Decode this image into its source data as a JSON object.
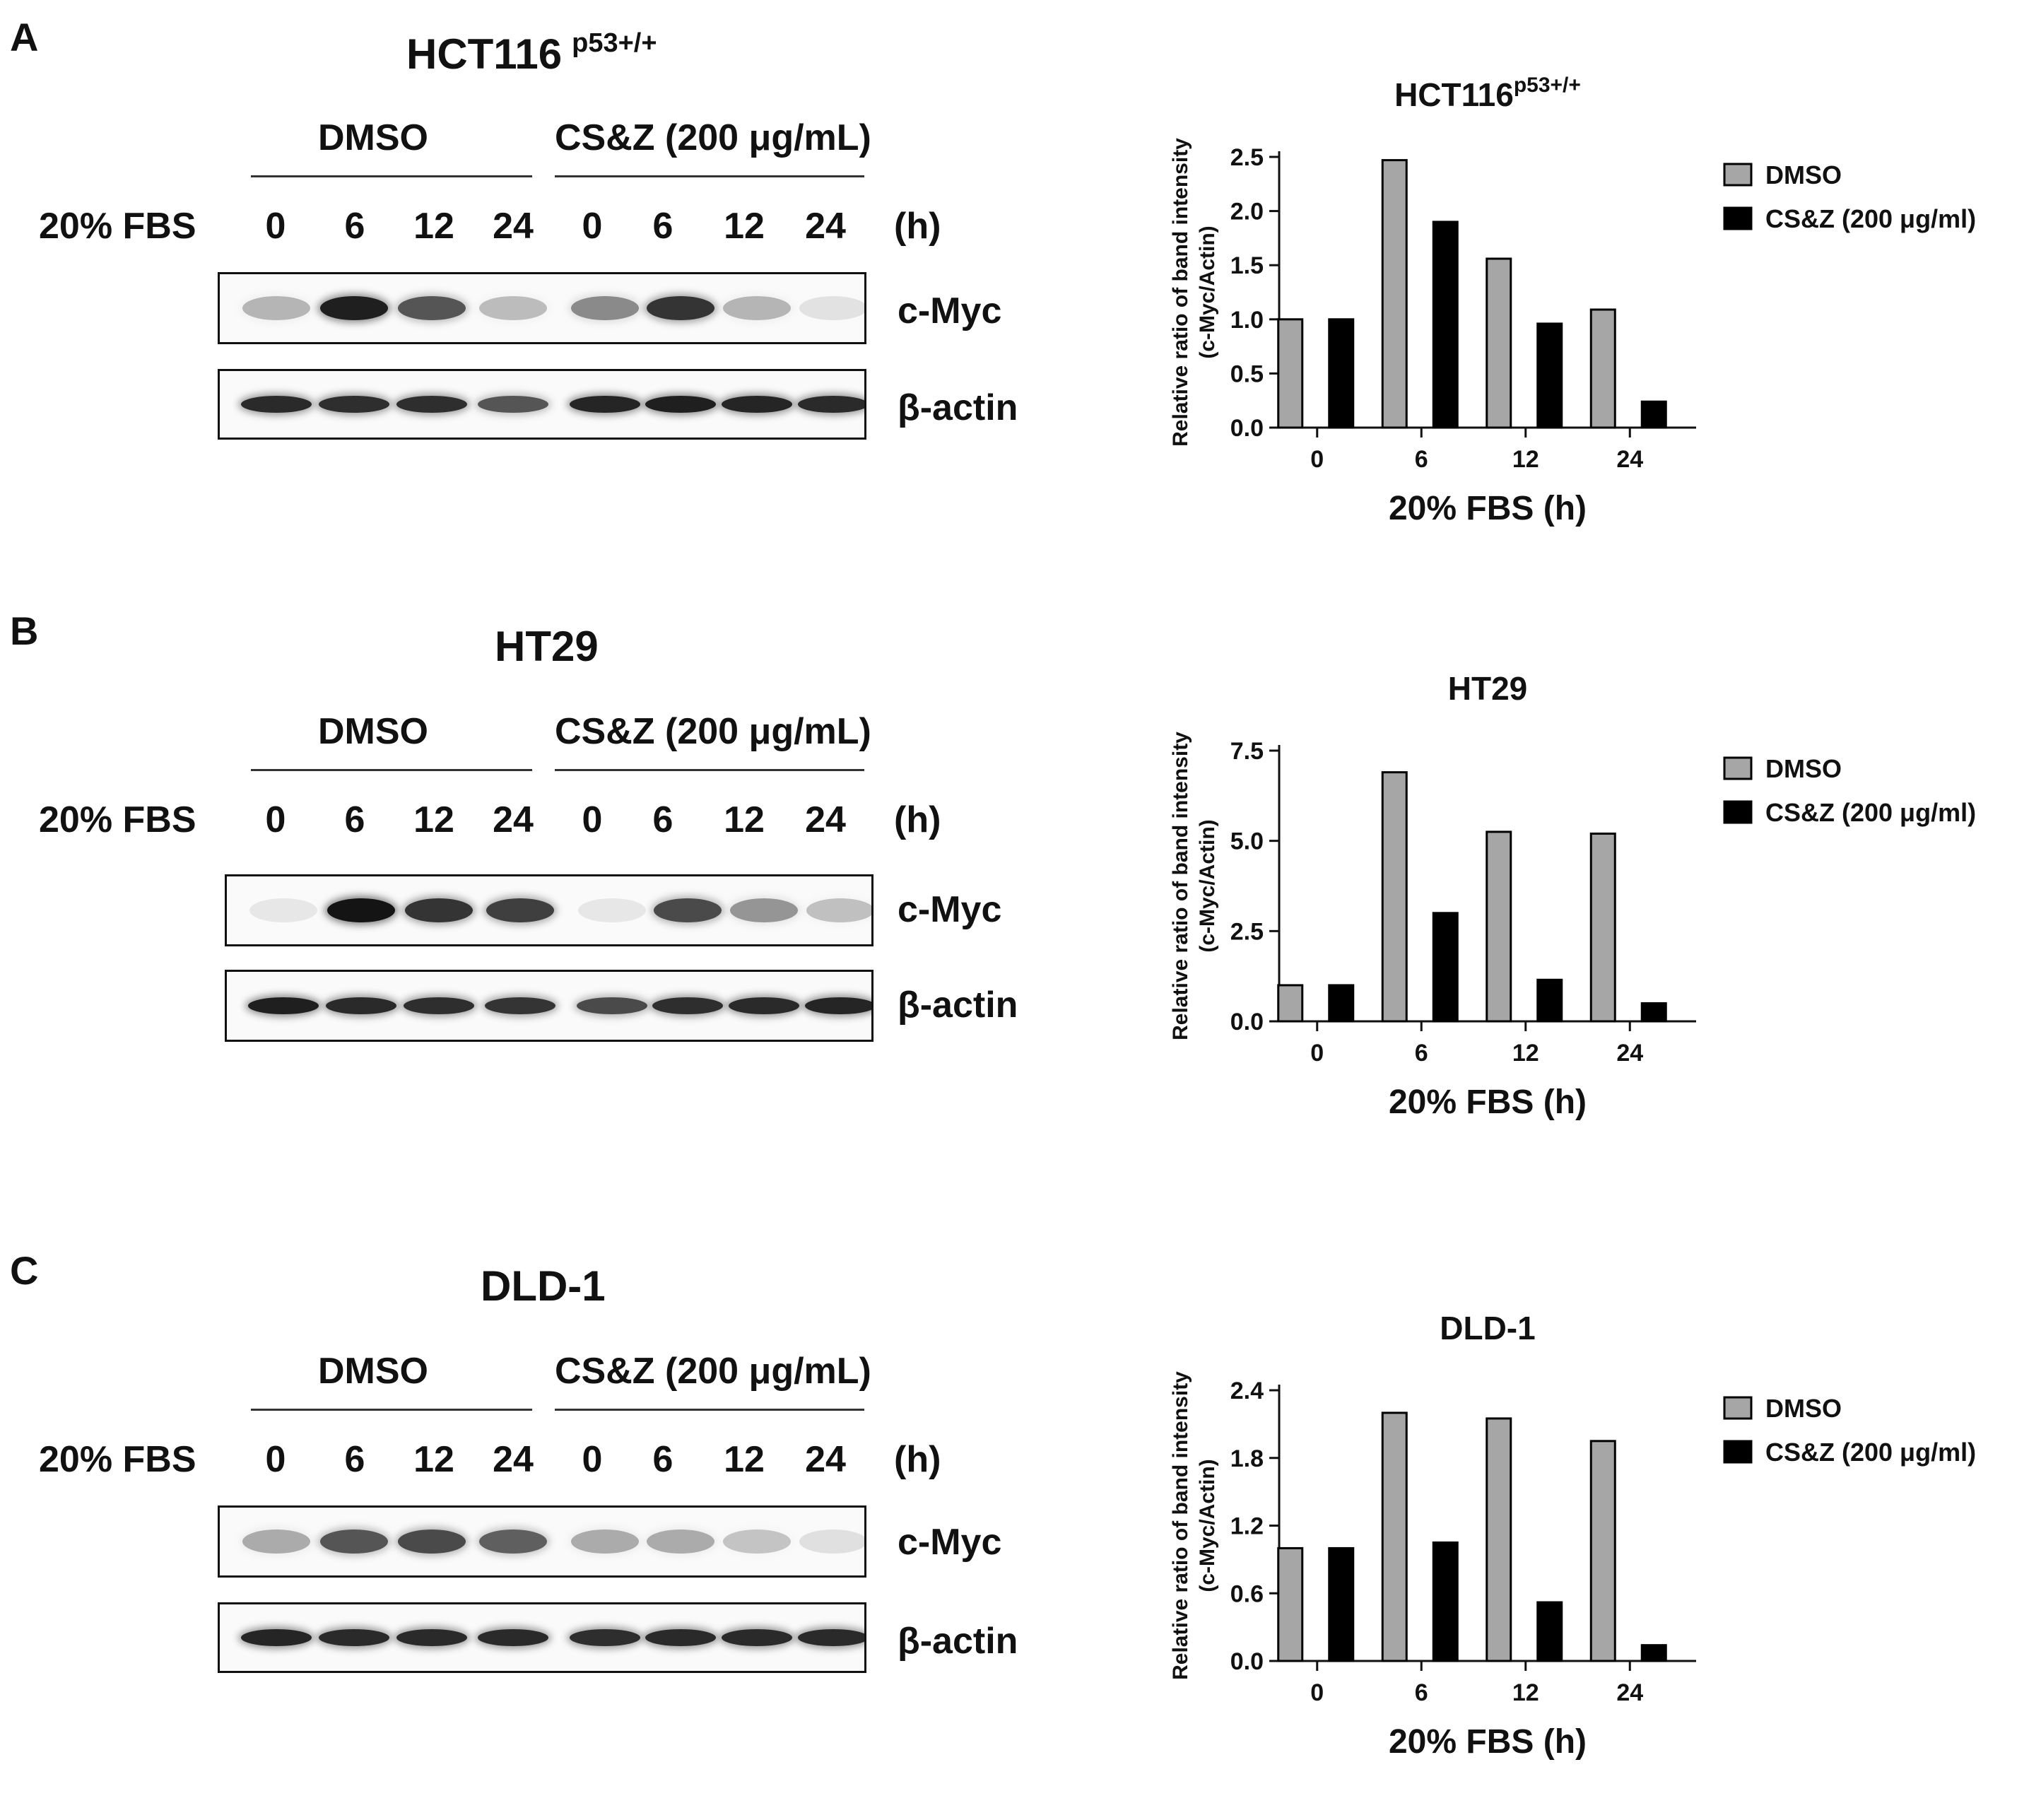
{
  "panels": [
    {
      "letter": "A",
      "title": "HCT116",
      "title_sup": "p53+/+",
      "blot": {
        "group1": "DMSO",
        "group2": "CS&Z (200 μg/mL)",
        "row_label": "20% FBS",
        "times": [
          "0",
          "6",
          "12",
          "24",
          "0",
          "6",
          "12",
          "24"
        ],
        "unit": "(h)",
        "protein1": "c-Myc",
        "protein2": "β-actin",
        "myc_intensity": [
          0.25,
          0.95,
          0.7,
          0.22,
          0.45,
          0.85,
          0.25,
          0.04
        ],
        "actin_intensity": [
          0.9,
          0.88,
          0.88,
          0.7,
          0.92,
          0.95,
          0.92,
          0.9
        ]
      },
      "chart_data": {
        "type": "bar",
        "title": "HCT116",
        "title_sup": "p53+/+",
        "categories": [
          "0",
          "6",
          "12",
          "24"
        ],
        "series": [
          {
            "name": "DMSO",
            "values": [
              1.0,
              2.47,
              1.56,
              1.09
            ]
          },
          {
            "name": "CS&Z (200 μg/ml)",
            "values": [
              1.0,
              1.9,
              0.96,
              0.24
            ]
          }
        ],
        "ylabel_line1": "Relative ratio of band intensity",
        "ylabel_line2": "(c-Myc/Actin)",
        "xlabel": "20% FBS (h)",
        "yticks": [
          "0.0",
          "0.5",
          "1.0",
          "1.5",
          "2.0",
          "2.5"
        ],
        "ylim": [
          0,
          2.5
        ],
        "legend_position": "top-right"
      }
    },
    {
      "letter": "B",
      "title": "HT29",
      "title_sup": "",
      "blot": {
        "group1": "DMSO",
        "group2": "CS&Z (200 μg/mL)",
        "row_label": "20% FBS",
        "times": [
          "0",
          "6",
          "12",
          "24",
          "0",
          "6",
          "12",
          "24"
        ],
        "unit": "(h)",
        "protein1": "c-Myc",
        "protein2": "β-actin",
        "myc_intensity": [
          0.02,
          1.0,
          0.85,
          0.8,
          0.02,
          0.75,
          0.4,
          0.2
        ],
        "actin_intensity": [
          0.95,
          0.9,
          0.88,
          0.85,
          0.75,
          0.88,
          0.9,
          0.92
        ]
      },
      "chart_data": {
        "type": "bar",
        "title": "HT29",
        "title_sup": "",
        "categories": [
          "0",
          "6",
          "12",
          "24"
        ],
        "series": [
          {
            "name": "DMSO",
            "values": [
              1.0,
              6.9,
              5.25,
              5.2
            ]
          },
          {
            "name": "CS&Z (200 μg/ml)",
            "values": [
              1.0,
              3.0,
              1.15,
              0.5
            ]
          }
        ],
        "ylabel_line1": "Relative ratio of band intensity",
        "ylabel_line2": "(c-Myc/Actin)",
        "xlabel": "20% FBS (h)",
        "yticks": [
          "0.0",
          "2.5",
          "5.0",
          "7.5"
        ],
        "ylim": [
          0,
          7.5
        ],
        "legend_position": "top-right"
      }
    },
    {
      "letter": "C",
      "title": "DLD-1",
      "title_sup": "",
      "blot": {
        "group1": "DMSO",
        "group2": "CS&Z (200 μg/mL)",
        "row_label": "20% FBS",
        "times": [
          "0",
          "6",
          "12",
          "24",
          "0",
          "6",
          "12",
          "24"
        ],
        "unit": "(h)",
        "protein1": "c-Myc",
        "protein2": "β-actin",
        "myc_intensity": [
          0.3,
          0.7,
          0.75,
          0.65,
          0.3,
          0.3,
          0.18,
          0.05
        ],
        "actin_intensity": [
          0.92,
          0.9,
          0.9,
          0.9,
          0.88,
          0.9,
          0.9,
          0.9
        ]
      },
      "chart_data": {
        "type": "bar",
        "title": "DLD-1",
        "title_sup": "",
        "categories": [
          "0",
          "6",
          "12",
          "24"
        ],
        "series": [
          {
            "name": "DMSO",
            "values": [
              1.0,
              2.2,
              2.15,
              1.95
            ]
          },
          {
            "name": "CS&Z (200 μg/ml)",
            "values": [
              1.0,
              1.05,
              0.52,
              0.14
            ]
          }
        ],
        "ylabel_line1": "Relative ratio of band intensity",
        "ylabel_line2": "(c-Myc/Actin)",
        "xlabel": "20% FBS (h)",
        "yticks": [
          "0.0",
          "0.6",
          "1.2",
          "1.8",
          "2.4"
        ],
        "ylim": [
          0,
          2.4
        ],
        "legend_position": "top-right"
      }
    }
  ],
  "colors": {
    "dmso": "#a6a6a6",
    "csz": "#000000",
    "axis": "#111111"
  }
}
